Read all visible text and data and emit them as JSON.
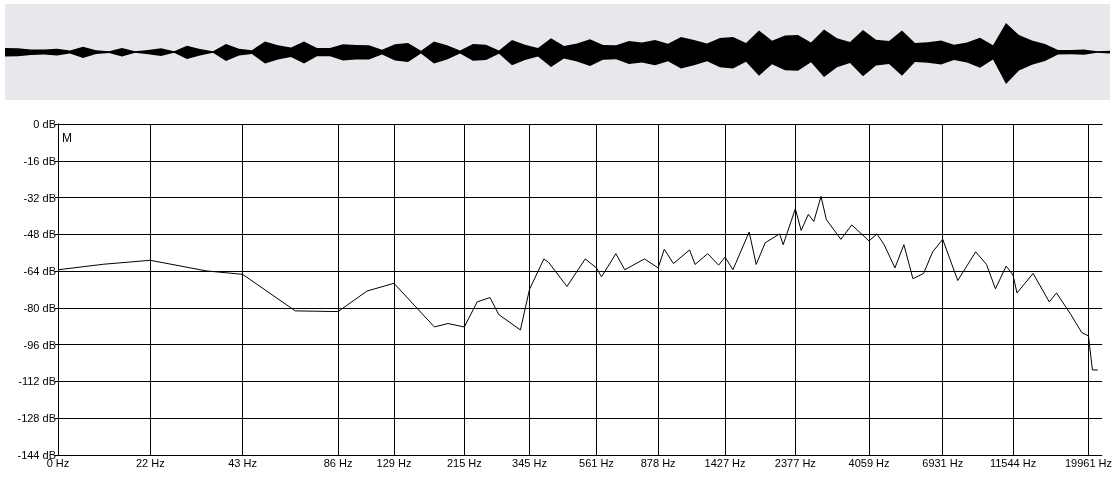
{
  "chart_data": {
    "type": "line",
    "annotations": [
      "M"
    ],
    "x": [
      11.3,
      15.7,
      22,
      33,
      43,
      63,
      86,
      106,
      129,
      173,
      191,
      215,
      236,
      259,
      276,
      323,
      345,
      383,
      397,
      453,
      517,
      561,
      582,
      646,
      689,
      795,
      878,
      918,
      981,
      1103,
      1148,
      1258,
      1362,
      1427,
      1511,
      1700,
      1789,
      1909,
      2121,
      2176,
      2377,
      2480,
      2612,
      2718,
      2864,
      2978,
      3309,
      3580,
      4059,
      4298,
      4530,
      4899,
      5228,
      5581,
      6032,
      6442,
      6931,
      7728,
      8802,
      9523,
      10161,
      10985,
      11544,
      11879,
      13357,
      15019,
      15827,
      17570,
      19001,
      19961,
      20540,
      21358
    ],
    "series": [
      {
        "color": "#000000",
        "values": [
          -63.4,
          -61,
          -59.3,
          -63.9,
          -65.4,
          -81.3,
          -81.6,
          -72.7,
          -69.3,
          -88.3,
          -86.8,
          -88.3,
          -77.4,
          -75.5,
          -82.9,
          -89.6,
          -72,
          -58.7,
          -60.3,
          -70.7,
          -58.7,
          -62.6,
          -66.5,
          -56.4,
          -63.4,
          -58.7,
          -62.6,
          -54.5,
          -60.7,
          -54.8,
          -61.1,
          -56.4,
          -61.4,
          -57.9,
          -63.4,
          -47,
          -61.1,
          -51.7,
          -47.8,
          -52.5,
          -36.9,
          -46.3,
          -39.3,
          -42.4,
          -31.5,
          -41.6,
          -50.2,
          -43.9,
          -50.9,
          -47.8,
          -52.5,
          -62.6,
          -52.5,
          -67.3,
          -65,
          -55.6,
          -50.2,
          -68.1,
          -55.6,
          -61.1,
          -71.7,
          -61.8,
          -65.7,
          -73.5,
          -65,
          -77.4,
          -73.5,
          -82.9,
          -90.7,
          -92.2,
          -107,
          -107
        ]
      }
    ],
    "xlim": [
      0,
      22050
    ],
    "log": "x",
    "xticks": [
      {
        "value": 0,
        "label": "0 Hz"
      },
      {
        "value": 22,
        "label": "22 Hz"
      },
      {
        "value": 43,
        "label": "43 Hz"
      },
      {
        "value": 86,
        "label": "86 Hz"
      },
      {
        "value": 129,
        "label": "129 Hz"
      },
      {
        "value": 215,
        "label": "215 Hz"
      },
      {
        "value": 345,
        "label": "345 Hz"
      },
      {
        "value": 561,
        "label": "561 Hz"
      },
      {
        "value": 878,
        "label": "878 Hz"
      },
      {
        "value": 1427,
        "label": "1427 Hz"
      },
      {
        "value": 2377,
        "label": "2377 Hz"
      },
      {
        "value": 4059,
        "label": "4059 Hz"
      },
      {
        "value": 6931,
        "label": "6931 Hz"
      },
      {
        "value": 11544,
        "label": "11544 Hz"
      },
      {
        "value": 19961,
        "label": "19961 Hz"
      }
    ],
    "ylim": [
      -144,
      0
    ],
    "yticks": [
      {
        "value": 0,
        "label": "0 dB"
      },
      {
        "value": -16,
        "label": "-16 dB"
      },
      {
        "value": -32,
        "label": "-32 dB"
      },
      {
        "value": -48,
        "label": "-48 dB"
      },
      {
        "value": -64,
        "label": "-64 dB"
      },
      {
        "value": -80,
        "label": "-80 dB"
      },
      {
        "value": -96,
        "label": "-96 dB"
      },
      {
        "value": -112,
        "label": "-112 dB"
      },
      {
        "value": -128,
        "label": "-128 dB"
      },
      {
        "value": -144,
        "label": "-144 dB"
      }
    ],
    "grid": true,
    "marker": "none",
    "line_style": "solid"
  }
}
